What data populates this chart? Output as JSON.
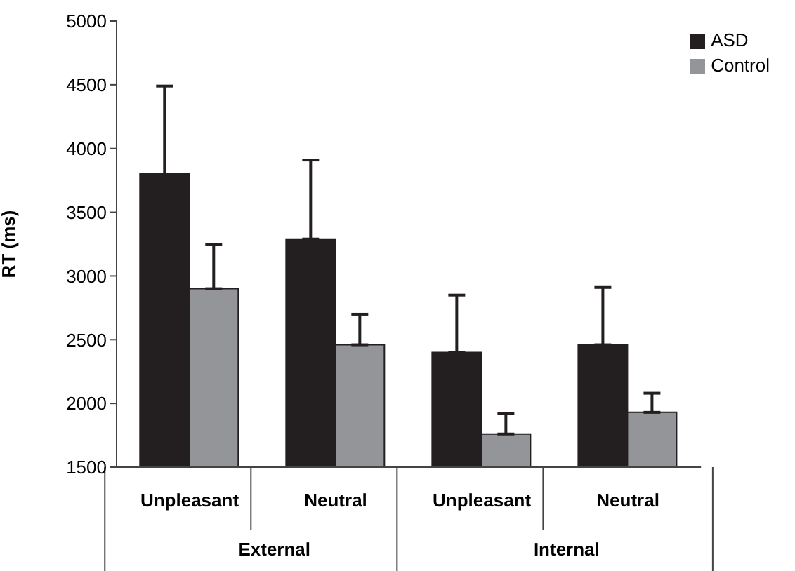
{
  "chart_data": {
    "type": "bar",
    "ylabel": "RT (ms)",
    "categories": [
      "Unpleasant",
      "Neutral",
      "Unpleasant",
      "Neutral"
    ],
    "annotations": [
      "External",
      "Internal"
    ],
    "series": [
      {
        "name": "ASD",
        "color": "#231f20",
        "values": [
          3800,
          3290,
          2400,
          2460
        ],
        "errors": [
          [
            3800,
            4490
          ],
          [
            3290,
            3910
          ],
          [
            2400,
            2850
          ],
          [
            2460,
            2910
          ]
        ]
      },
      {
        "name": "Control",
        "color": "#939598",
        "values": [
          2900,
          2460,
          1760,
          1930
        ],
        "errors": [
          [
            2900,
            3250
          ],
          [
            2460,
            2700
          ],
          [
            1760,
            1920
          ],
          [
            1930,
            2080
          ]
        ]
      }
    ],
    "ylim": [
      1500,
      5000
    ],
    "yticks": [
      1500,
      2000,
      2500,
      3000,
      3500,
      4000,
      4500,
      5000
    ],
    "grid": false,
    "legend": "top right"
  }
}
